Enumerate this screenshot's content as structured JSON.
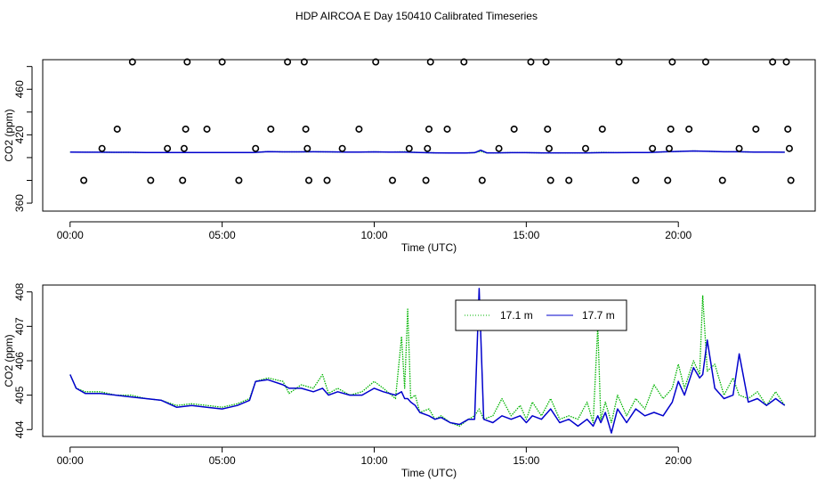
{
  "figure": {
    "title": "HDP AIRCOA E  Day 150410  Calibrated Timeseries"
  },
  "chart_data": [
    {
      "type": "scatter",
      "xlabel": "Time (UTC)",
      "ylabel": "CO2 (ppm)",
      "xlim": [
        -0.9,
        24.5
      ],
      "ylim": [
        353,
        486
      ],
      "x_ticks": [
        0,
        5,
        10,
        15,
        20
      ],
      "x_tick_labels": [
        "00:00",
        "05:00",
        "10:00",
        "15:00",
        "20:00"
      ],
      "y_ticks": [
        360,
        380,
        400,
        420,
        440,
        460,
        480
      ],
      "y_tick_labels": [
        "360",
        "",
        "",
        "420",
        "",
        "460",
        ""
      ],
      "grid": false,
      "legend": "none",
      "calibration_points": {
        "style": "open-circle",
        "color": "#000000",
        "x": [
          0.45,
          1.05,
          1.55,
          2.05,
          2.65,
          3.2,
          3.7,
          3.75,
          3.8,
          3.85,
          4.5,
          5.0,
          5.55,
          6.1,
          6.6,
          7.15,
          7.7,
          7.75,
          7.8,
          7.85,
          8.45,
          8.95,
          9.5,
          10.05,
          10.6,
          11.15,
          11.7,
          11.75,
          11.8,
          11.85,
          12.4,
          12.95,
          13.55,
          14.1,
          14.6,
          15.15,
          15.65,
          15.7,
          15.75,
          15.8,
          16.4,
          16.95,
          17.5,
          18.05,
          18.6,
          19.15,
          19.65,
          19.7,
          19.75,
          19.8,
          20.35,
          20.9,
          21.45,
          22.0,
          22.55,
          23.1,
          23.55,
          23.6,
          23.65,
          23.7
        ],
        "y": [
          380,
          408,
          425,
          484,
          380,
          408,
          380,
          408,
          425,
          484,
          425,
          484,
          380,
          408,
          425,
          484,
          484,
          425,
          408,
          380,
          380,
          408,
          425,
          484,
          380,
          408,
          380,
          408,
          425,
          484,
          425,
          484,
          380,
          408,
          425,
          484,
          484,
          425,
          408,
          380,
          380,
          408,
          425,
          484,
          380,
          408,
          380,
          408,
          425,
          484,
          425,
          484,
          380,
          408,
          425,
          484,
          484,
          425,
          408,
          380
        ]
      },
      "series": [
        {
          "name": "",
          "color": "#00b400",
          "style": "dotted",
          "x": [
            0,
            0.5,
            1,
            1.5,
            2,
            2.5,
            3,
            3.5,
            4,
            4.5,
            5,
            5.5,
            6,
            6.5,
            7,
            7.5,
            8,
            8.5,
            9,
            9.5,
            10,
            10.5,
            11,
            11.5,
            12,
            12.5,
            13,
            13.3,
            13.5,
            13.7,
            14,
            14.5,
            15,
            15.5,
            16,
            16.5,
            17,
            17.5,
            18,
            18.5,
            19,
            19.5,
            20,
            20.5,
            21,
            21.5,
            22,
            22.5,
            23,
            23.5
          ],
          "y": [
            404.8,
            404.7,
            404.7,
            404.6,
            404.6,
            404.5,
            404.5,
            404.5,
            404.4,
            404.4,
            404.4,
            404.4,
            404.5,
            405.3,
            405.0,
            405.0,
            405.1,
            405.0,
            404.9,
            404.9,
            405.0,
            404.9,
            405.2,
            404.4,
            404.2,
            404.1,
            404.1,
            404.3,
            405.5,
            404.2,
            404.2,
            404.3,
            404.3,
            404.2,
            404.2,
            404.2,
            404.2,
            404.6,
            404.3,
            404.4,
            404.5,
            405.0,
            405.4,
            405.8,
            405.5,
            405.1,
            405.1,
            404.9,
            404.8,
            404.7
          ]
        },
        {
          "name": "",
          "color": "#0000cc",
          "style": "solid",
          "x": [
            0,
            0.5,
            1,
            1.5,
            2,
            2.5,
            3,
            3.5,
            4,
            4.5,
            5,
            5.5,
            6,
            6.5,
            7,
            7.5,
            8,
            8.5,
            9,
            9.5,
            10,
            10.5,
            11,
            11.5,
            12,
            12.5,
            13,
            13.3,
            13.5,
            13.7,
            14,
            14.5,
            15,
            15.5,
            16,
            16.5,
            17,
            17.5,
            18,
            18.5,
            19,
            19.5,
            20,
            20.5,
            21,
            21.5,
            22,
            22.5,
            23,
            23.5
          ],
          "y": [
            404.8,
            404.7,
            404.7,
            404.6,
            404.6,
            404.5,
            404.5,
            404.5,
            404.4,
            404.4,
            404.4,
            404.4,
            404.5,
            405.3,
            405.0,
            405.0,
            405.1,
            405.0,
            404.9,
            404.9,
            405.0,
            404.9,
            404.8,
            404.4,
            404.2,
            404.1,
            404.1,
            404.3,
            406.5,
            404.2,
            404.2,
            404.3,
            404.3,
            404.2,
            404.2,
            404.2,
            404.2,
            404.3,
            404.3,
            404.4,
            404.5,
            405.0,
            405.4,
            405.8,
            405.5,
            405.1,
            405.1,
            404.9,
            404.8,
            404.7
          ]
        }
      ]
    },
    {
      "type": "line",
      "xlabel": "Time (UTC)",
      "ylabel": "CO2 (ppm)",
      "xlim": [
        -0.9,
        24.5
      ],
      "ylim": [
        403.8,
        408.2
      ],
      "x_ticks": [
        0,
        5,
        10,
        15,
        20
      ],
      "x_tick_labels": [
        "00:00",
        "05:00",
        "10:00",
        "15:00",
        "20:00"
      ],
      "y_ticks": [
        404,
        405,
        406,
        407,
        408
      ],
      "y_tick_labels": [
        "404",
        "405",
        "406",
        "407",
        "408"
      ],
      "grid": false,
      "legend": "top-center",
      "series": [
        {
          "name": "17.1 m",
          "color": "#00b400",
          "style": "dotted",
          "x": [
            0,
            0.2,
            0.5,
            1,
            1.5,
            2,
            2.5,
            3,
            3.5,
            4,
            4.5,
            5,
            5.5,
            5.9,
            6.1,
            6.5,
            7,
            7.2,
            7.6,
            8,
            8.3,
            8.5,
            8.8,
            9.2,
            9.6,
            10.0,
            10.3,
            10.7,
            10.9,
            11.0,
            11.1,
            11.2,
            11.35,
            11.5,
            11.8,
            12.0,
            12.2,
            12.5,
            12.8,
            13.1,
            13.3,
            13.45,
            13.6,
            13.9,
            14.2,
            14.5,
            14.8,
            15.0,
            15.2,
            15.5,
            15.8,
            16.1,
            16.4,
            16.7,
            17.0,
            17.2,
            17.35,
            17.45,
            17.6,
            17.8,
            18.0,
            18.3,
            18.6,
            18.9,
            19.2,
            19.5,
            19.8,
            20.0,
            20.2,
            20.5,
            20.7,
            20.8,
            20.95,
            21.2,
            21.5,
            21.8,
            22.0,
            22.3,
            22.6,
            22.9,
            23.2,
            23.5
          ],
          "y": [
            405.6,
            405.2,
            405.1,
            405.1,
            405.0,
            405.0,
            404.9,
            404.85,
            404.7,
            404.75,
            404.7,
            404.65,
            404.75,
            404.9,
            405.4,
            405.5,
            405.4,
            405.05,
            405.3,
            405.2,
            405.6,
            405.05,
            405.2,
            405.0,
            405.1,
            405.4,
            405.2,
            404.9,
            406.7,
            405.2,
            407.5,
            404.9,
            405.0,
            404.5,
            404.6,
            404.3,
            404.4,
            404.2,
            404.1,
            404.3,
            404.4,
            404.6,
            404.3,
            404.4,
            404.9,
            404.4,
            404.7,
            404.3,
            404.8,
            404.4,
            404.9,
            404.3,
            404.4,
            404.3,
            404.8,
            404.2,
            407.0,
            404.3,
            404.8,
            404.2,
            405.0,
            404.4,
            404.9,
            404.6,
            405.3,
            404.9,
            405.2,
            405.9,
            405.2,
            406.0,
            405.6,
            407.9,
            405.7,
            405.9,
            405.0,
            405.5,
            405.0,
            404.9,
            405.1,
            404.7,
            405.1,
            404.7
          ]
        },
        {
          "name": "17.7 m",
          "color": "#0000cc",
          "style": "solid",
          "x": [
            0,
            0.2,
            0.5,
            1,
            1.5,
            2,
            2.5,
            3,
            3.5,
            4,
            4.5,
            5,
            5.5,
            5.9,
            6.1,
            6.5,
            7,
            7.2,
            7.6,
            8,
            8.3,
            8.5,
            8.8,
            9.2,
            9.6,
            10.0,
            10.3,
            10.7,
            10.9,
            11.0,
            11.1,
            11.2,
            11.35,
            11.5,
            11.8,
            12.0,
            12.2,
            12.5,
            12.8,
            13.1,
            13.3,
            13.45,
            13.6,
            13.9,
            14.2,
            14.5,
            14.8,
            15.0,
            15.2,
            15.5,
            15.8,
            16.1,
            16.4,
            16.7,
            17.0,
            17.2,
            17.35,
            17.45,
            17.6,
            17.8,
            18.0,
            18.3,
            18.6,
            18.9,
            19.2,
            19.5,
            19.8,
            20.0,
            20.2,
            20.5,
            20.7,
            20.8,
            20.95,
            21.2,
            21.5,
            21.8,
            22.0,
            22.3,
            22.6,
            22.9,
            23.2,
            23.5
          ],
          "y": [
            405.6,
            405.2,
            405.05,
            405.05,
            405.0,
            404.95,
            404.9,
            404.85,
            404.65,
            404.7,
            404.65,
            404.6,
            404.7,
            404.85,
            405.4,
            405.45,
            405.3,
            405.2,
            405.2,
            405.1,
            405.2,
            405.0,
            405.1,
            405.0,
            405.0,
            405.2,
            405.1,
            405.0,
            405.1,
            404.9,
            404.9,
            404.8,
            404.7,
            404.5,
            404.4,
            404.3,
            404.35,
            404.2,
            404.15,
            404.3,
            404.3,
            408.1,
            404.3,
            404.2,
            404.4,
            404.3,
            404.4,
            404.2,
            404.4,
            404.3,
            404.6,
            404.2,
            404.3,
            404.1,
            404.3,
            404.1,
            404.4,
            404.2,
            404.5,
            403.9,
            404.6,
            404.2,
            404.6,
            404.4,
            404.5,
            404.4,
            404.8,
            405.4,
            405.0,
            405.8,
            405.5,
            405.6,
            406.6,
            405.2,
            404.9,
            405.0,
            406.2,
            404.8,
            404.9,
            404.7,
            404.9,
            404.7
          ]
        }
      ]
    }
  ]
}
